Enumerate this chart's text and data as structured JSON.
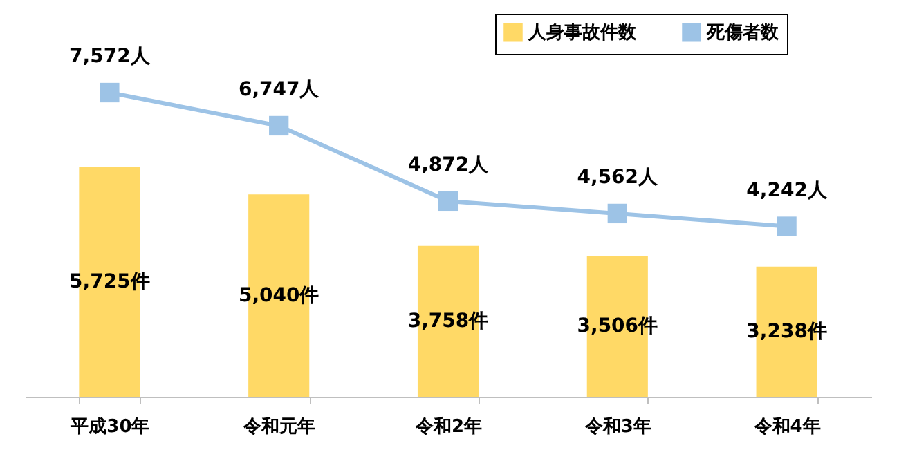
{
  "chart_data": {
    "type": "bar",
    "categories": [
      "平成30年",
      "令和元年",
      "令和2年",
      "令和3年",
      "令和4年"
    ],
    "series": [
      {
        "name": "人身事故件数",
        "color": "#ffd966",
        "values": [
          5725,
          5040,
          3758,
          3506,
          3238
        ],
        "value_labels": [
          "5,725件",
          "5,040件",
          "3,758件",
          "3,506件",
          "3,238件"
        ]
      },
      {
        "name": "死傷者数",
        "type": "line",
        "color": "#9dc3e6",
        "values": [
          7572,
          6747,
          4872,
          4562,
          4242
        ],
        "value_labels": [
          "7,572人",
          "6,747人",
          "4,872人",
          "4,562人",
          "4,242人"
        ]
      }
    ],
    "legend": "top right",
    "marker": "square",
    "grid": false
  }
}
